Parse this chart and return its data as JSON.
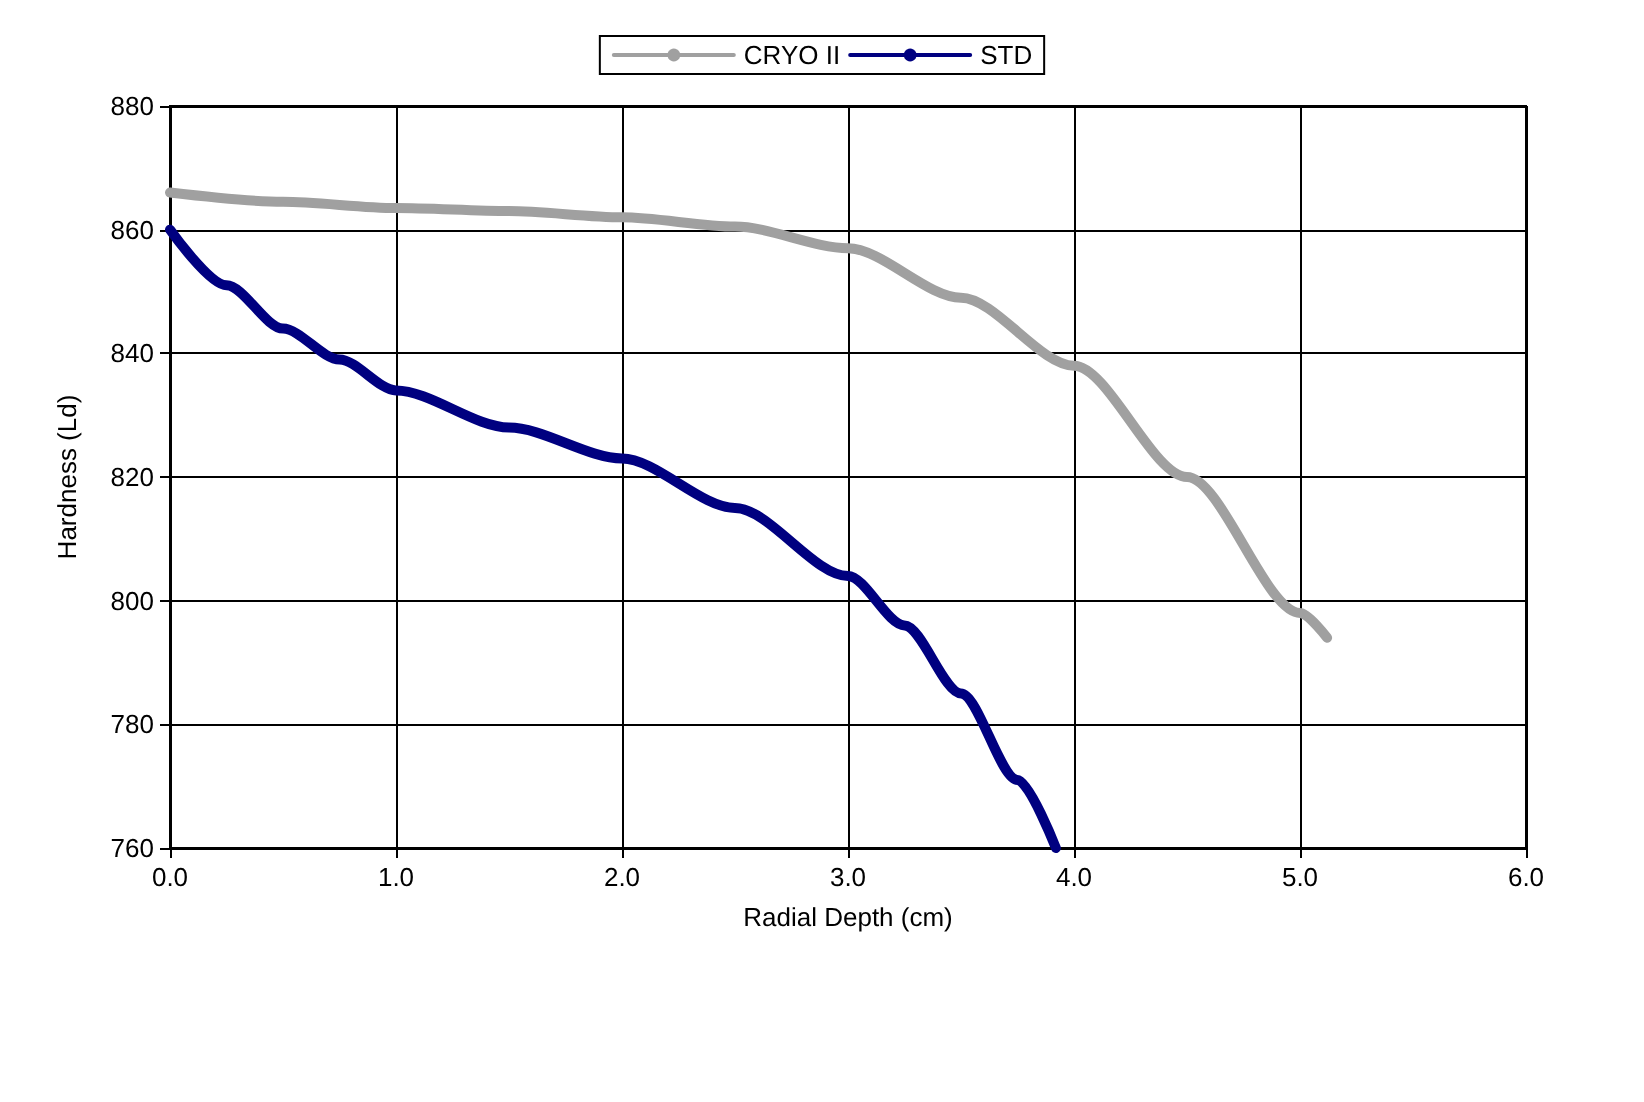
{
  "chart_data": {
    "type": "line",
    "xlabel": "Radial Depth (cm)",
    "ylabel": "Hardness (Ld)",
    "series": [
      {
        "name": "CRYO II",
        "color": "#a0a0a0",
        "x": [
          0,
          0.5,
          1.0,
          1.5,
          2.0,
          2.5,
          3.0,
          3.5,
          4.0,
          4.5,
          5.0,
          5.12
        ],
        "values": [
          866,
          864.5,
          863.5,
          863,
          862,
          860.5,
          857,
          849,
          838,
          820,
          798,
          794
        ]
      },
      {
        "name": "STD",
        "color": "#000080",
        "x": [
          0,
          0.25,
          0.5,
          0.75,
          1.0,
          1.5,
          2.0,
          2.5,
          3.0,
          3.25,
          3.5,
          3.75,
          3.92
        ],
        "values": [
          860,
          851,
          844,
          839,
          834,
          828,
          823,
          815,
          804,
          796,
          785,
          771,
          760
        ]
      }
    ],
    "xlim": [
      0,
      6
    ],
    "xticks": [
      {
        "value": 0,
        "label": "0.0"
      },
      {
        "value": 1,
        "label": "1.0"
      },
      {
        "value": 2,
        "label": "2.0"
      },
      {
        "value": 3,
        "label": "3.0"
      },
      {
        "value": 4,
        "label": "4.0"
      },
      {
        "value": 5,
        "label": "5.0"
      },
      {
        "value": 6,
        "label": "6.0"
      }
    ],
    "ylim": [
      760,
      880
    ],
    "yticks": [
      760,
      780,
      800,
      820,
      840,
      860,
      880
    ],
    "grid": true,
    "legend": "top",
    "marker": "none",
    "line_style": "solid"
  }
}
